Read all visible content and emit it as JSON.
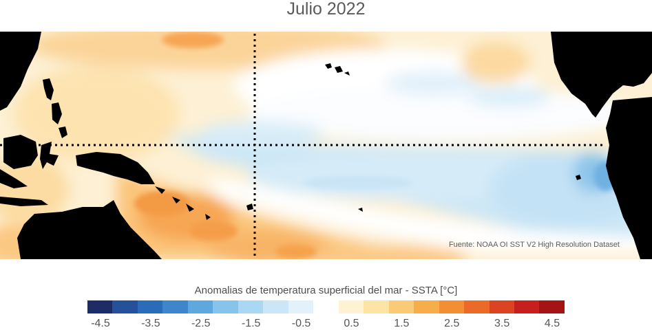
{
  "title": "Julio 2022",
  "source_note": "Fuente: NOAA OI SST V2 High Resolution Dataset",
  "colorbar": {
    "title": "Anomalias de temperatura superficial del mar - SSTA  [°C]",
    "colors": [
      "#1c2c66",
      "#24509c",
      "#2a6bba",
      "#3d86cc",
      "#5ea8dd",
      "#86c4ec",
      "#aad7f3",
      "#cbe6f7",
      "#e3f1fa",
      "#ffffff",
      "#fff3d4",
      "#fde3a6",
      "#fbca75",
      "#f8ad4b",
      "#f38f33",
      "#ec6a27",
      "#dc4322",
      "#c51f1f",
      "#a51414"
    ],
    "tick_labels": [
      "-4.5",
      "-3.5",
      "-2.5",
      "-1.5",
      "-0.5",
      "0.5",
      "1.5",
      "2.5",
      "3.5",
      "4.5"
    ]
  },
  "map": {
    "region": "Pacífico tropical",
    "land_color": "#000000",
    "reference_lines": [
      "equator-dotted-line",
      "dateline-dotted-line"
    ]
  }
}
